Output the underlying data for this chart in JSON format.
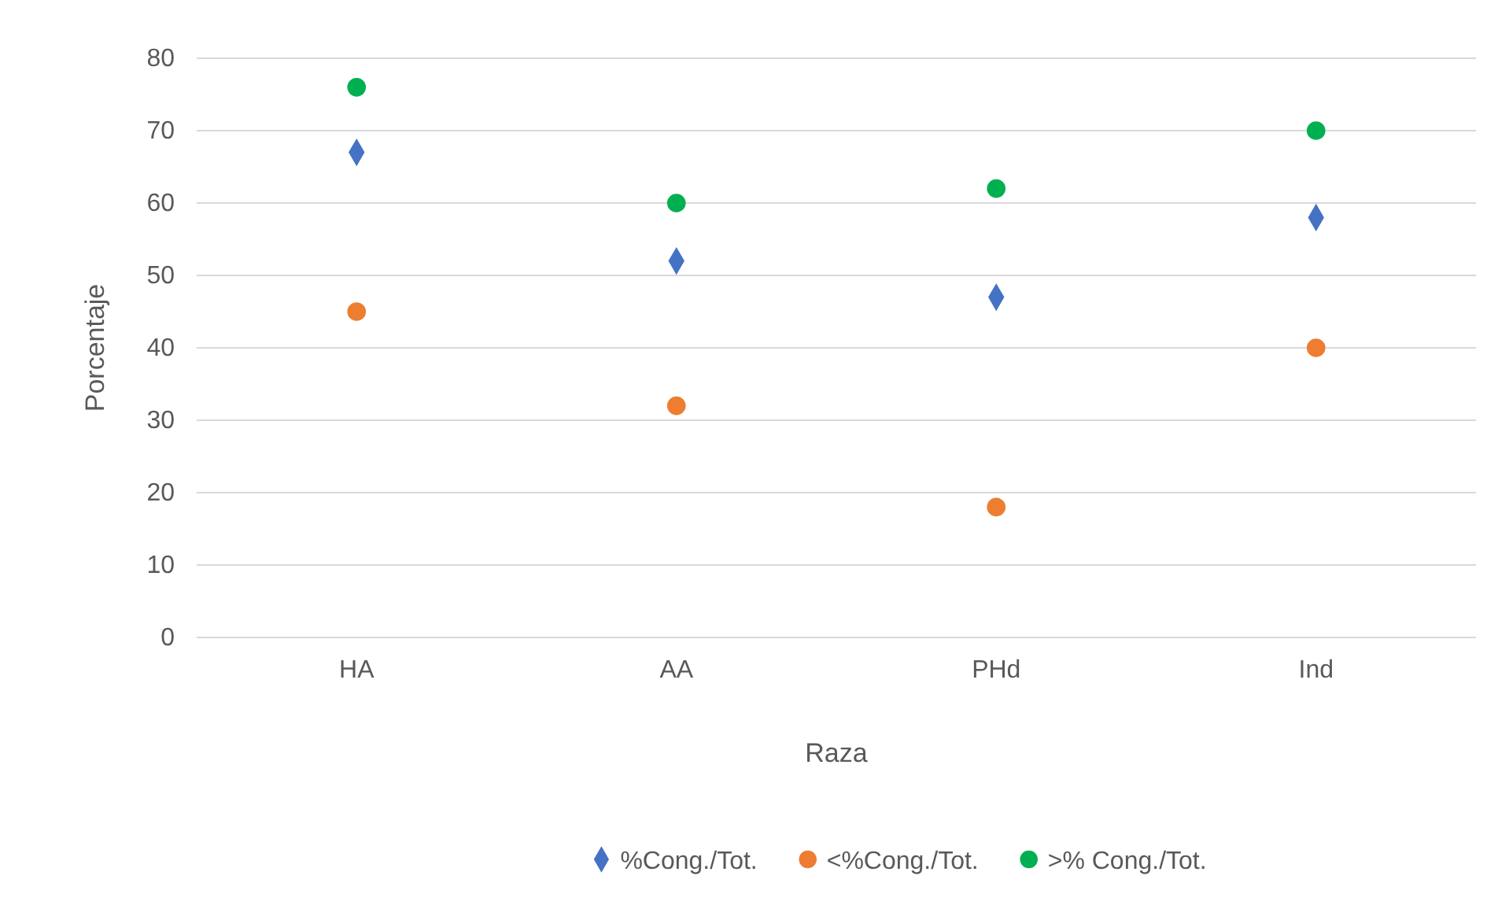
{
  "chart_data": {
    "type": "scatter",
    "xlabel": "Raza",
    "ylabel": "Porcentaje",
    "categories": [
      "HA",
      "AA",
      "PHd",
      "Ind"
    ],
    "series": [
      {
        "name": "%Cong./Tot.",
        "color": "#4472c4",
        "marker": "diamond",
        "values": [
          67,
          52,
          47,
          58
        ]
      },
      {
        "name": "<%Cong./Tot.",
        "color": "#ed7d31",
        "marker": "circle",
        "values": [
          45,
          32,
          18,
          40
        ]
      },
      {
        "name": ">% Cong./Tot.",
        "color": "#00b050",
        "marker": "circle",
        "values": [
          76,
          60,
          62,
          70
        ]
      }
    ],
    "ylim": [
      0,
      80
    ],
    "yticks": [
      0,
      10,
      20,
      30,
      40,
      50,
      60,
      70,
      80
    ],
    "grid": "y",
    "legend": "bottom"
  }
}
